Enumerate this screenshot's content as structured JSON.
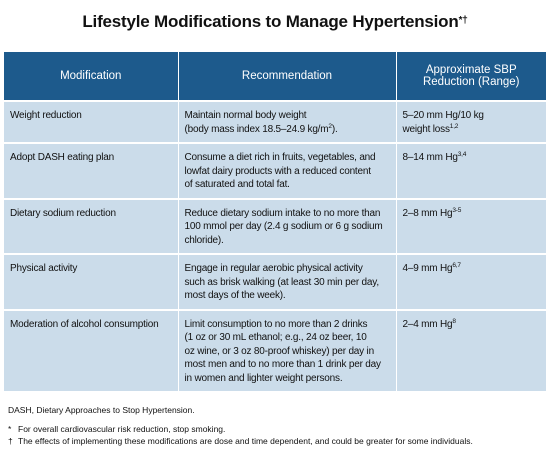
{
  "title": {
    "text": "Lifestyle Modifications to Manage Hypertension",
    "sup": "*†"
  },
  "table": {
    "header": [
      [
        "Modification"
      ],
      [
        "Recommendation"
      ],
      [
        "Approximate SBP",
        "Reduction (Range)"
      ]
    ],
    "rows": [
      [
        [
          "Weight reduction"
        ],
        [
          "Maintain normal body weight",
          {
            "text": "(body mass index 18.5–24.9 kg/m",
            "sup": "2",
            "after": ")."
          }
        ],
        [
          "5–20 mm Hg/10 kg",
          {
            "text": "weight loss",
            "sup": "1,2"
          }
        ]
      ],
      [
        [
          "Adopt DASH eating plan"
        ],
        [
          "Consume a diet rich in fruits, vegetables, and",
          "lowfat dairy products with a reduced content",
          "of saturated and total fat."
        ],
        [
          {
            "text": "8–14 mm Hg",
            "sup": "3,4"
          }
        ]
      ],
      [
        [
          "Dietary sodium reduction"
        ],
        [
          "Reduce dietary sodium intake to no more than",
          "100 mmol per day (2.4 g sodium or 6 g sodium",
          "chloride)."
        ],
        [
          {
            "text": "2–8 mm Hg",
            "sup": "3-5"
          }
        ]
      ],
      [
        [
          "Physical activity"
        ],
        [
          "Engage in regular aerobic physical activity",
          "such as brisk walking (at least 30 min per day,",
          "most days of the week)."
        ],
        [
          {
            "text": "4–9 mm Hg",
            "sup": "6,7"
          }
        ]
      ],
      [
        [
          "Moderation of alcohol consumption"
        ],
        [
          "Limit consumption to no more than 2 drinks",
          "(1 oz or 30 mL ethanol; e.g., 24 oz beer, 10",
          "oz wine, or 3 oz 80-proof whiskey) per day in",
          "most men and to no more than 1 drink per day",
          "in women and lighter weight persons."
        ],
        [
          {
            "text": "2–4 mm Hg",
            "sup": "8"
          }
        ]
      ]
    ]
  },
  "footnotes": {
    "abbreviation": "DASH, Dietary Approaches to Stop Hypertension.",
    "notes": [
      {
        "symbol": "*",
        "text": "For overall cardiovascular risk reduction, stop smoking."
      },
      {
        "symbol": "†",
        "text": "The effects of implementing these modifications are dose and time dependent, and could be greater for some individuals."
      }
    ]
  }
}
